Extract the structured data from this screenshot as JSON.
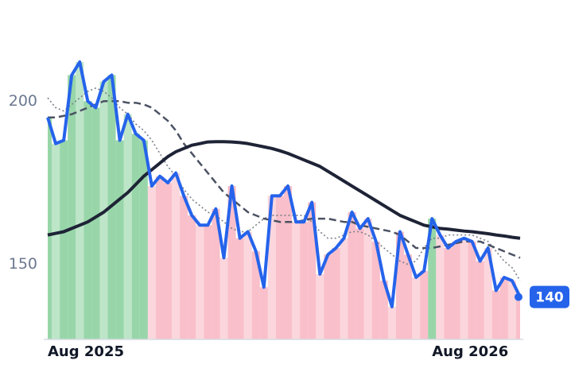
{
  "chart_data": {
    "type": "line",
    "categories": [
      "Aug 2025",
      null,
      null,
      null,
      null,
      null,
      null,
      null,
      null,
      null,
      null,
      null,
      null,
      null,
      null,
      null,
      null,
      null,
      null,
      null,
      null,
      null,
      null,
      null,
      null,
      null,
      null,
      null,
      null,
      null,
      null,
      null,
      null,
      null,
      null,
      null,
      null,
      null,
      null,
      null,
      null,
      null,
      null,
      null,
      null,
      null,
      null,
      null,
      "Aug 2026",
      null,
      null,
      null,
      null,
      null,
      null,
      null,
      null,
      null,
      null,
      null
    ],
    "series": [
      {
        "color": "#2563eb",
        "style": "solid",
        "values": [
          195,
          187,
          188,
          208,
          212,
          200,
          198,
          206,
          208,
          188,
          196,
          190,
          188,
          174,
          177,
          175,
          178,
          171,
          165,
          162,
          162,
          167,
          152,
          174,
          158,
          160,
          154,
          143,
          171,
          171,
          174,
          163,
          163,
          169,
          147,
          153,
          155,
          158,
          166,
          161,
          164,
          157,
          145,
          137,
          160,
          153,
          146,
          148,
          164,
          159,
          155,
          157,
          158,
          157,
          151,
          155,
          142,
          146,
          145,
          140
        ]
      },
      {
        "color": "#1e2336",
        "style": "solid",
        "values": [
          159,
          159.5,
          160,
          161,
          162,
          163,
          164.5,
          166,
          168,
          170,
          172,
          174.5,
          177,
          179,
          181,
          183,
          184.5,
          185.5,
          186.5,
          187,
          187.5,
          187.6,
          187.6,
          187.5,
          187.3,
          187,
          186.5,
          186,
          185.5,
          184.8,
          184,
          183,
          182,
          181,
          180,
          178.5,
          177,
          175.5,
          174,
          172.5,
          171,
          169.5,
          168,
          166.5,
          165,
          164,
          163,
          162,
          161.5,
          161,
          160.8,
          160.5,
          160.2,
          160,
          159.7,
          159.4,
          159,
          158.7,
          158.3,
          158
        ]
      },
      {
        "color": "#4b5263",
        "style": "dashed",
        "values": [
          195,
          195,
          195.5,
          196,
          197,
          198,
          199,
          200,
          200,
          200,
          199.5,
          199.5,
          199,
          198,
          196,
          194,
          191,
          187,
          184,
          181,
          178,
          175,
          172,
          170,
          168,
          166,
          165,
          164,
          163.5,
          163,
          163,
          163,
          163.5,
          164,
          164,
          164,
          163.5,
          163,
          163,
          162,
          161.5,
          161,
          160.5,
          160,
          159,
          157,
          155,
          155,
          155,
          155.5,
          156,
          156.5,
          157,
          157,
          157,
          156,
          155,
          154,
          153,
          152
        ]
      },
      {
        "color": "#7a7f8a",
        "style": "dotted",
        "values": [
          201,
          198,
          197,
          199,
          201,
          203,
          204,
          203,
          201,
          198,
          196,
          193,
          191,
          188,
          184,
          180,
          177,
          173,
          170,
          168,
          166,
          165,
          163,
          161,
          160,
          160,
          162,
          164,
          165,
          165,
          165,
          165,
          165,
          163,
          160,
          158,
          158,
          159,
          160,
          160,
          159,
          157,
          155,
          153,
          151,
          150,
          151,
          155,
          158,
          158,
          159,
          159,
          159,
          159,
          158,
          157,
          154,
          151,
          149,
          145
        ]
      }
    ],
    "up_color": "#86cf9a",
    "down_color": "#f8b4c1",
    "ylim": [
      127,
      231
    ],
    "yticks": [
      150,
      200
    ]
  }
}
